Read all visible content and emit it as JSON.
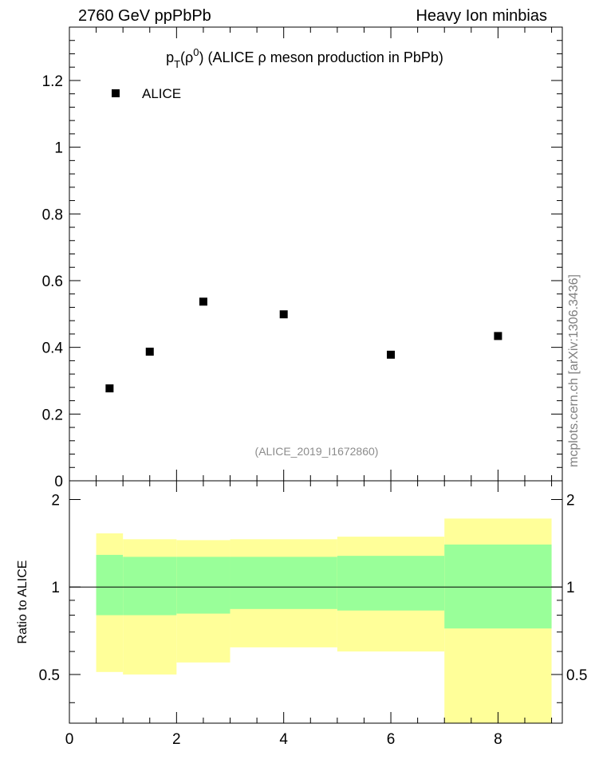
{
  "header": {
    "left": "2760 GeV ppPbPb",
    "right": "Heavy Ion minbias"
  },
  "side_label": "mcplots.cern.ch [arXiv:1306.3436]",
  "reference": "(ALICE_2019_I1672860)",
  "colors": {
    "band_outer": "#ffff99",
    "band_inner": "#99ff99",
    "marker": "#000000",
    "axis": "#000000",
    "reference_text": "#8c8c8c"
  },
  "chart_data": [
    {
      "type": "scatter",
      "title": {
        "prefix": "p",
        "sub": "T",
        "open": "(ρ",
        "sup": "0",
        "rest": ") (ALICE ρ meson production in PbPb)"
      },
      "legend": [
        {
          "name": "ALICE",
          "marker": "square",
          "position": "top-left"
        }
      ],
      "series": [
        {
          "name": "ALICE",
          "x": [
            0.75,
            1.5,
            2.5,
            4.0,
            6.0,
            8.0
          ],
          "y": [
            0.277,
            0.387,
            0.537,
            0.499,
            0.378,
            0.434
          ]
        }
      ],
      "xlim": [
        0,
        9.2
      ],
      "ylim": [
        0,
        1.36
      ],
      "yticks": [
        {
          "v": 0,
          "label": "0"
        },
        {
          "v": 0.2,
          "label": "0.2"
        },
        {
          "v": 0.4,
          "label": "0.4"
        },
        {
          "v": 0.6,
          "label": "0.6"
        },
        {
          "v": 0.8,
          "label": "0.8"
        },
        {
          "v": 1.0,
          "label": "1"
        },
        {
          "v": 1.2,
          "label": "1.2"
        }
      ]
    },
    {
      "type": "area",
      "ylabel": "Ratio to ALICE",
      "reference_line": 1.0,
      "bins": [
        {
          "lo": 0.5,
          "hi": 1.0,
          "inner": [
            0.8,
            1.29
          ],
          "outer": [
            0.51,
            1.53
          ]
        },
        {
          "lo": 1.0,
          "hi": 2.0,
          "inner": [
            0.8,
            1.27
          ],
          "outer": [
            0.5,
            1.46
          ]
        },
        {
          "lo": 2.0,
          "hi": 3.0,
          "inner": [
            0.81,
            1.27
          ],
          "outer": [
            0.55,
            1.45
          ]
        },
        {
          "lo": 3.0,
          "hi": 5.0,
          "inner": [
            0.84,
            1.27
          ],
          "outer": [
            0.62,
            1.46
          ]
        },
        {
          "lo": 5.0,
          "hi": 7.0,
          "inner": [
            0.83,
            1.28
          ],
          "outer": [
            0.6,
            1.49
          ]
        },
        {
          "lo": 7.0,
          "hi": 9.0,
          "inner": [
            0.72,
            1.4
          ],
          "outer": [
            0.34,
            1.72
          ]
        }
      ],
      "xlim": [
        0,
        9.2
      ],
      "ylim": [
        0.34,
        2.32
      ],
      "yticks": [
        {
          "v": 0.5,
          "label": "0.5"
        },
        {
          "v": 1.0,
          "label": "1"
        },
        {
          "v": 2.0,
          "label": "2"
        }
      ],
      "xticks": [
        {
          "v": 0,
          "label": "0"
        },
        {
          "v": 2,
          "label": "2"
        },
        {
          "v": 4,
          "label": "4"
        },
        {
          "v": 6,
          "label": "6"
        },
        {
          "v": 8,
          "label": "8"
        }
      ]
    }
  ]
}
